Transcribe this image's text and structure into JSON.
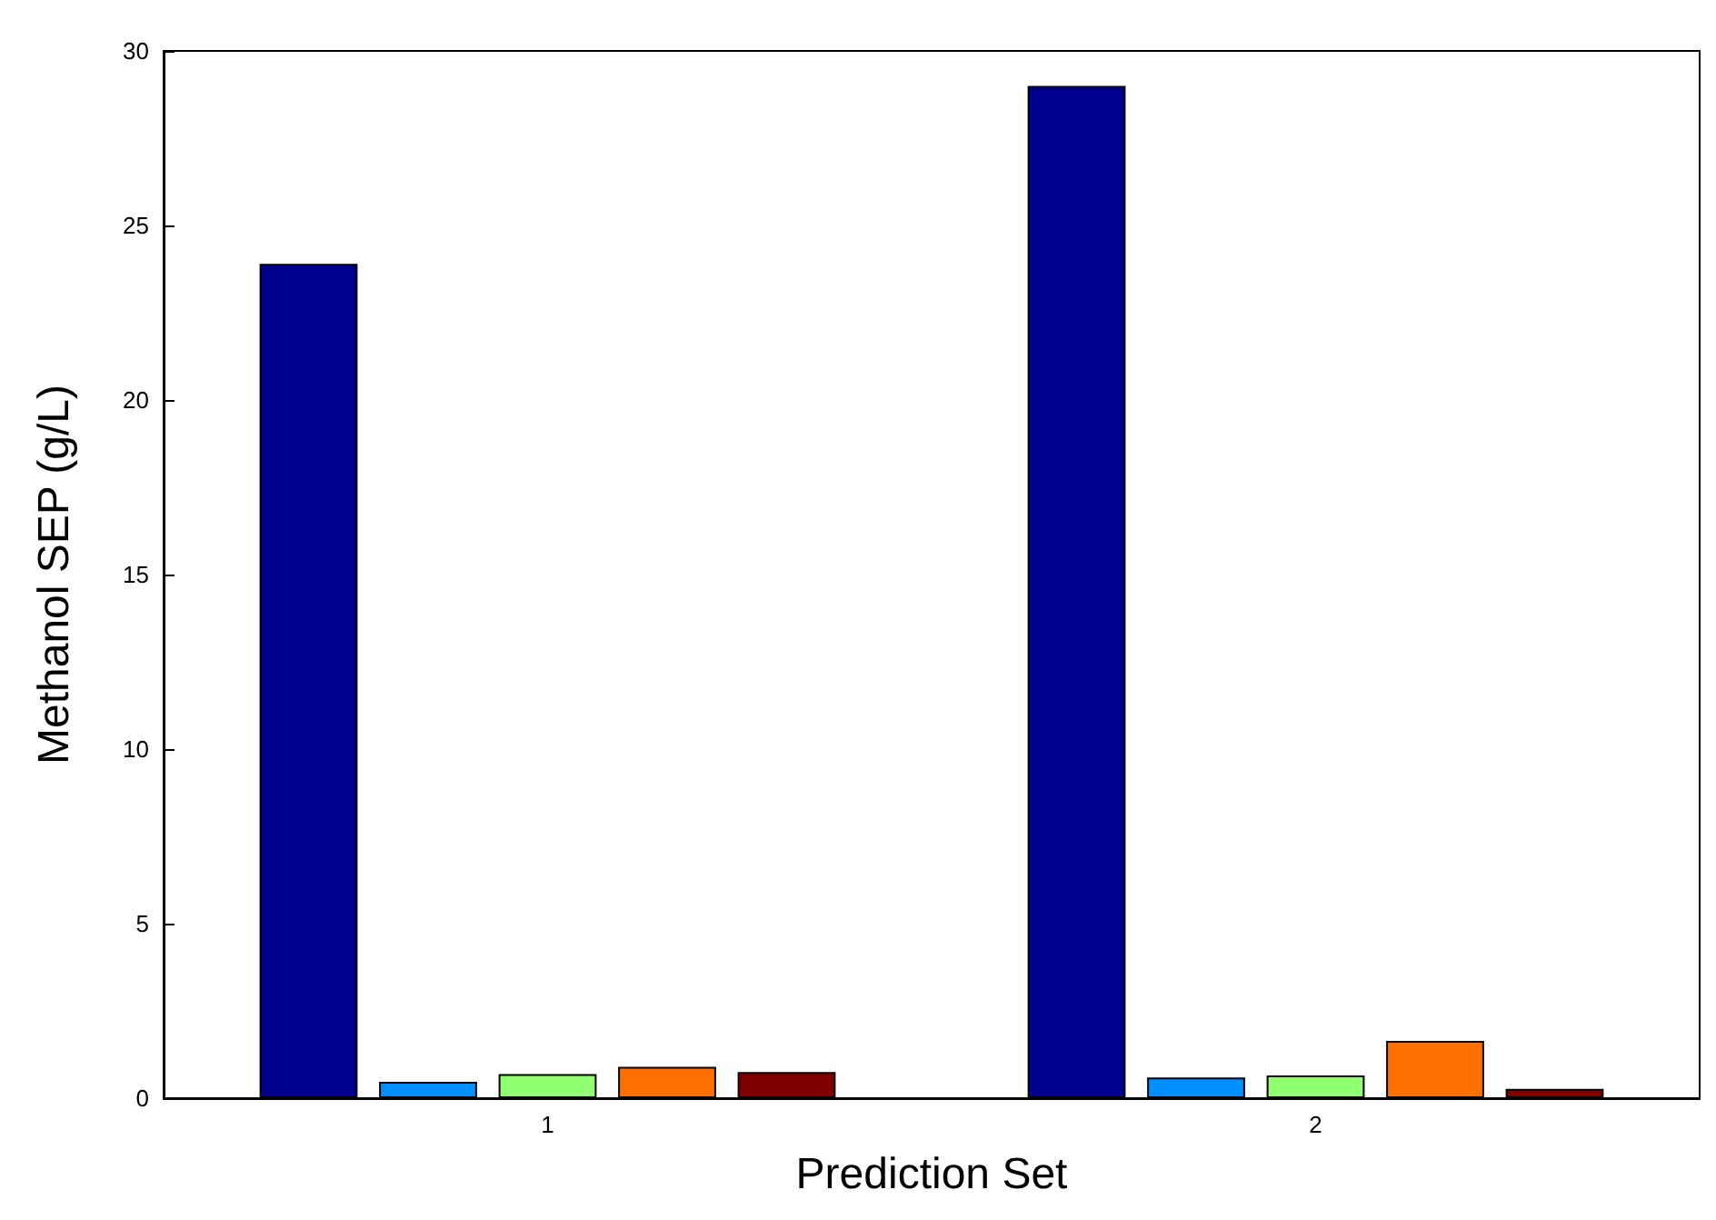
{
  "chart_data": {
    "type": "bar",
    "xlabel": "Prediction Set",
    "ylabel": "Methanol SEP (g/L)",
    "categories": [
      "1",
      "2"
    ],
    "series": [
      {
        "color": "#00008f",
        "values": [
          23.9,
          29.0
        ]
      },
      {
        "color": "#0090ff",
        "values": [
          0.47,
          0.59
        ]
      },
      {
        "color": "#90ff70",
        "values": [
          0.69,
          0.65
        ]
      },
      {
        "color": "#ff7000",
        "values": [
          0.9,
          1.64
        ]
      },
      {
        "color": "#800000",
        "values": [
          0.75,
          0.27
        ]
      }
    ],
    "ylim": [
      0,
      30
    ],
    "yticks": [
      0,
      5,
      10,
      15,
      20,
      25,
      30
    ]
  }
}
